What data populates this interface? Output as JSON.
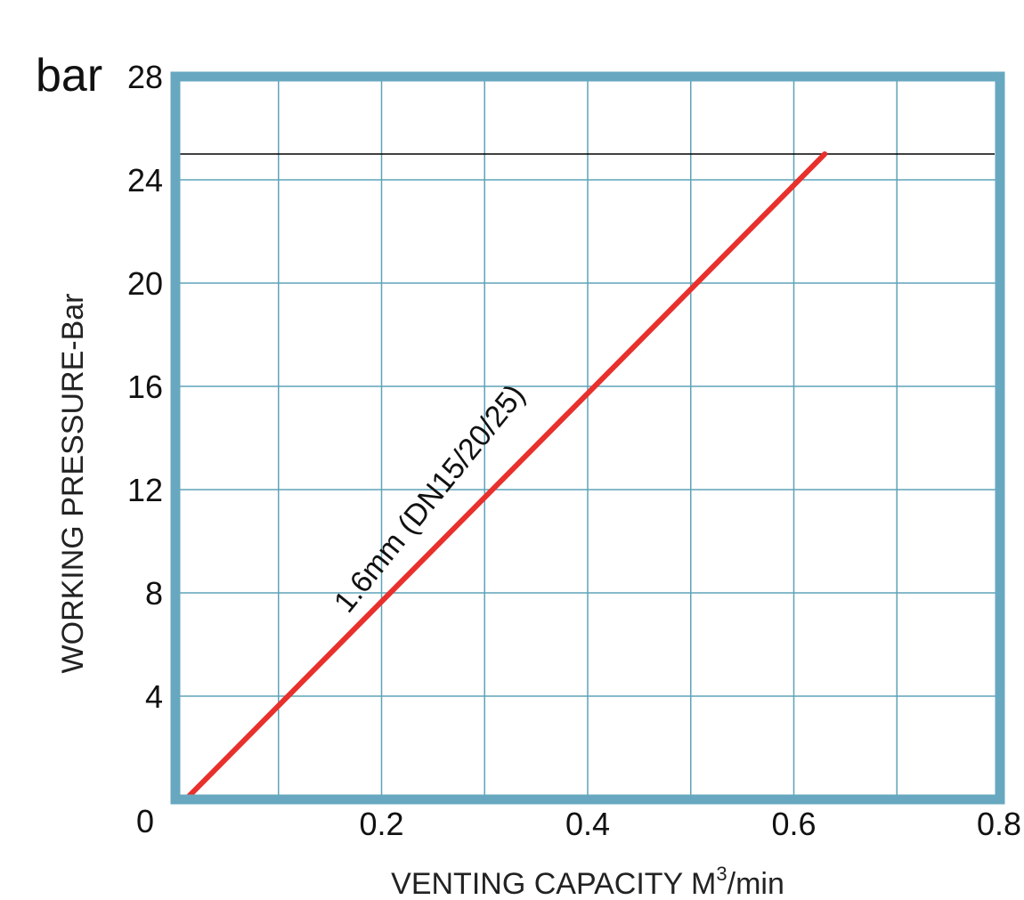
{
  "chart_data": {
    "type": "line",
    "title": "",
    "unit_label": "bar",
    "xlabel": "VENTING CAPACITY  M",
    "xlabel_sup": "3",
    "xlabel_suffix": "/min",
    "ylabel": "WORKING PRESSURE-Bar",
    "xlim": [
      0,
      0.8
    ],
    "ylim": [
      0,
      28
    ],
    "x_ticks": [
      0.2,
      0.4,
      0.6,
      0.8
    ],
    "x_tick_labels": [
      "0.2",
      "0.4",
      "0.6",
      "0.8"
    ],
    "y_ticks": [
      0,
      4,
      8,
      12,
      16,
      20,
      24,
      28
    ],
    "y_tick_labels": [
      "0",
      "4",
      "8",
      "12",
      "16",
      "20",
      "24",
      "28"
    ],
    "x_minor_grid": [
      0.1,
      0.2,
      0.3,
      0.4,
      0.5,
      0.6,
      0.7
    ],
    "grid": true,
    "reference_line": {
      "y": 25
    },
    "series": [
      {
        "name": "1.6mm (DN15/20/25)",
        "color": "#e8302c",
        "x": [
          0.01,
          0.63
        ],
        "y": [
          0,
          25
        ]
      }
    ],
    "colors": {
      "frame": "#67a8c0",
      "grid": "#5fa3b8",
      "reference": "#000000"
    }
  }
}
